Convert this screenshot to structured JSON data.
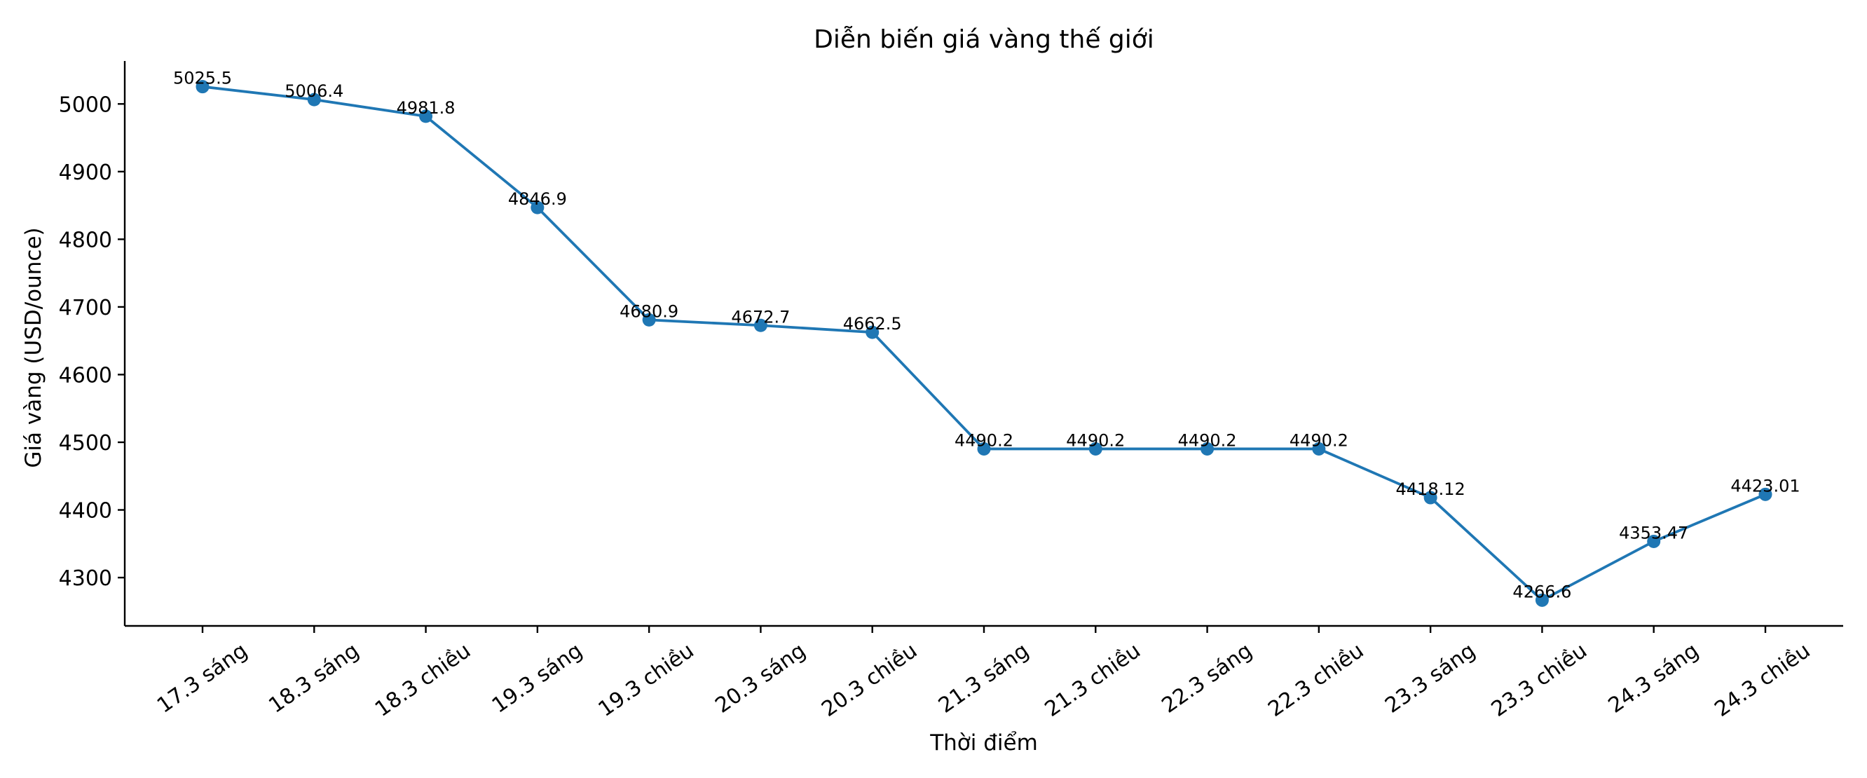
{
  "chart_data": {
    "type": "line",
    "title": "Diễn biến giá vàng thế giới",
    "xlabel": "Thời điểm",
    "ylabel": "Giá vàng (USD/ounce)",
    "categories": [
      "17.3 sáng",
      "18.3 sáng",
      "18.3 chiều",
      "19.3 sáng",
      "19.3 chiều",
      "20.3 sáng",
      "20.3 chiều",
      "21.3 sáng",
      "21.3 chiều",
      "22.3 sáng",
      "22.3 chiều",
      "23.3 sáng",
      "23.3 chiều",
      "24.3 sáng",
      "24.3 chiều"
    ],
    "values": [
      5025.5,
      5006.4,
      4981.8,
      4846.9,
      4680.9,
      4672.7,
      4662.5,
      4490.2,
      4490.2,
      4490.2,
      4490.2,
      4418.12,
      4266.6,
      4353.47,
      4423.01
    ],
    "data_labels": [
      "5025.5",
      "5006.4",
      "4981.8",
      "4846.9",
      "4680.9",
      "4672.7",
      "4662.5",
      "4490.2",
      "4490.2",
      "4490.2",
      "4490.2",
      "4418.12",
      "4266.6",
      "4353.47",
      "4423.01"
    ],
    "yticks": [
      4300,
      4400,
      4500,
      4600,
      4700,
      4800,
      4900,
      5000
    ],
    "ylim": [
      4228.6,
      5063.5
    ],
    "grid": false,
    "color": "#1f77b4"
  }
}
